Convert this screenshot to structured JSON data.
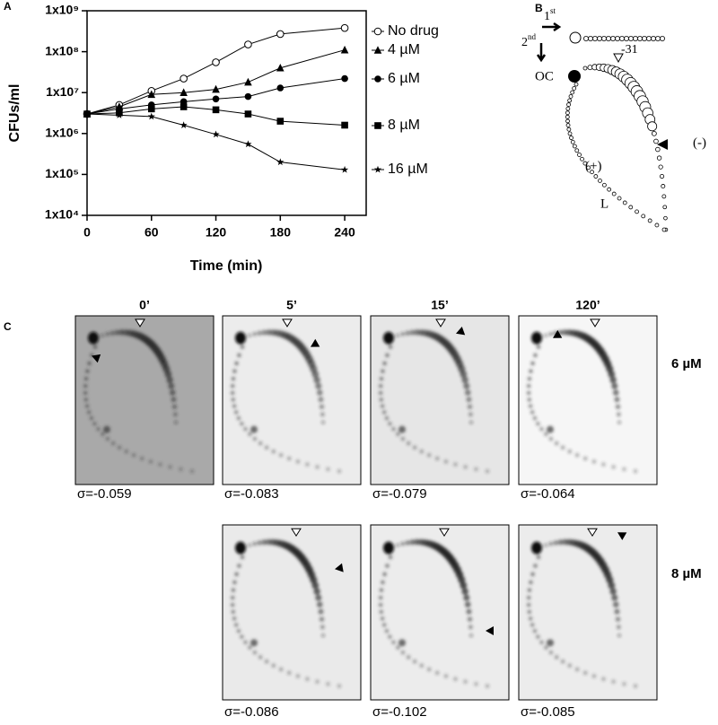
{
  "chart_data": {
    "type": "line",
    "panel": "A",
    "ylabel": "CFUs/ml",
    "xlabel": "Time (min)",
    "x": [
      0,
      30,
      60,
      90,
      120,
      150,
      180,
      240
    ],
    "xlim": [
      0,
      260
    ],
    "xticks": [
      0,
      60,
      120,
      180,
      240
    ],
    "ylim": [
      10000,
      1000000000
    ],
    "log_y": true,
    "yticks": [
      {
        "value": 10000,
        "label": "1x10⁴"
      },
      {
        "value": 100000,
        "label": "1x10⁵"
      },
      {
        "value": 1000000,
        "label": "1x10⁶"
      },
      {
        "value": 10000000,
        "label": "1x10⁷"
      },
      {
        "value": 100000000,
        "label": "1x10⁸"
      },
      {
        "value": 1000000000,
        "label": "1x10⁹"
      }
    ],
    "series": [
      {
        "name": "No drug",
        "marker": "open-circle",
        "color": "#000000",
        "values": [
          3000000,
          5000000,
          11000000,
          22000000,
          55000000,
          150000000,
          270000000,
          380000000
        ]
      },
      {
        "name": "4 µM",
        "marker": "triangle",
        "color": "#000000",
        "values": [
          3000000,
          4500000,
          9000000,
          10000000,
          12000000,
          18000000,
          40000000,
          110000000
        ]
      },
      {
        "name": "6 µM",
        "marker": "circle",
        "color": "#000000",
        "values": [
          3000000,
          4000000,
          5000000,
          6000000,
          7000000,
          8000000,
          13000000,
          22000000
        ]
      },
      {
        "name": "8 µM",
        "marker": "square",
        "color": "#000000",
        "values": [
          3000000,
          3200000,
          4000000,
          4500000,
          3800000,
          3000000,
          2000000,
          1600000
        ]
      },
      {
        "name": "16 µM",
        "marker": "star",
        "color": "#000000",
        "values": [
          3000000,
          2800000,
          2600000,
          1600000,
          950000,
          550000,
          200000,
          130000
        ]
      }
    ]
  },
  "diagram": {
    "panel": "B",
    "first": {
      "num": "1",
      "sup": "st"
    },
    "second": {
      "num": "2",
      "sup": "nd"
    },
    "oc": "OC",
    "marker": "-31",
    "plus": "(+)",
    "minus": "(-)",
    "l": "L"
  },
  "gels": {
    "panel": "C",
    "columns": [
      "0’",
      "5’",
      "15’",
      "120’"
    ],
    "rows": [
      "6 µM",
      "8 µM"
    ],
    "sigma_row1": [
      "σ=-0.059",
      "σ=-0.083",
      "σ=-0.079",
      "σ=-0.064"
    ],
    "sigma_row2": [
      "σ=-0.086",
      "σ=-0.102",
      "σ=-0.085"
    ]
  }
}
